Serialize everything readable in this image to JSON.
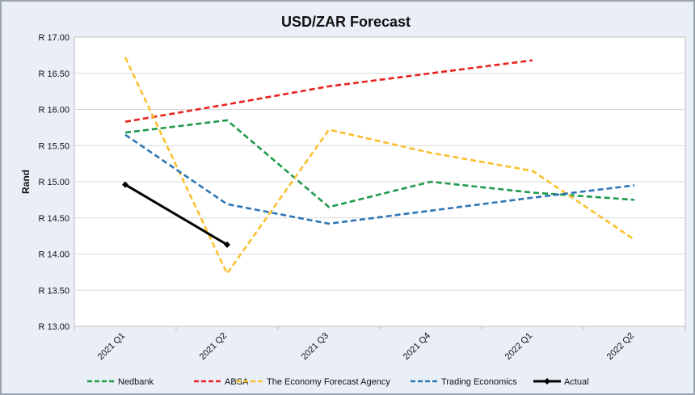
{
  "chart_data": {
    "type": "line",
    "title": "USD/ZAR Forecast",
    "xlabel": "",
    "ylabel": "Rand",
    "categories": [
      "2021 Q1",
      "2021 Q2",
      "2021 Q3",
      "2021 Q4",
      "2022 Q1",
      "2022 Q2"
    ],
    "ylim": [
      13.0,
      17.0
    ],
    "ytick_values": [
      13.0,
      13.5,
      14.0,
      14.5,
      15.0,
      15.5,
      16.0,
      16.5,
      17.0
    ],
    "ytick_labels": [
      "R 13.00",
      "R 13.50",
      "R 14.00",
      "R 14.50",
      "R 15.00",
      "R 15.50",
      "R 16.00",
      "R 16.50",
      "R 17.00"
    ],
    "grid": "horizontal",
    "legend_position": "bottom",
    "series": [
      {
        "name": "Nedbank",
        "color": "#1e9a4a",
        "dashed": true,
        "marker": false,
        "values": [
          15.68,
          15.85,
          14.65,
          15.0,
          14.85,
          14.75
        ]
      },
      {
        "name": "ABSA",
        "color": "#e8231e",
        "dashed": true,
        "marker": false,
        "values": [
          15.83,
          16.07,
          16.32,
          16.5,
          16.68,
          null
        ]
      },
      {
        "name": "The Economy Forecast Agency",
        "color": "#fbc02d",
        "dashed": true,
        "marker": false,
        "values": [
          16.72,
          13.73,
          15.72,
          15.4,
          15.15,
          14.2
        ]
      },
      {
        "name": "Trading Economics",
        "color": "#2e75b6",
        "dashed": true,
        "marker": false,
        "values": [
          15.65,
          14.69,
          14.42,
          14.6,
          14.78,
          14.95
        ]
      },
      {
        "name": "Actual",
        "color": "#000000",
        "dashed": false,
        "marker": true,
        "values": [
          14.96,
          14.13,
          null,
          null,
          null,
          null
        ]
      }
    ]
  }
}
